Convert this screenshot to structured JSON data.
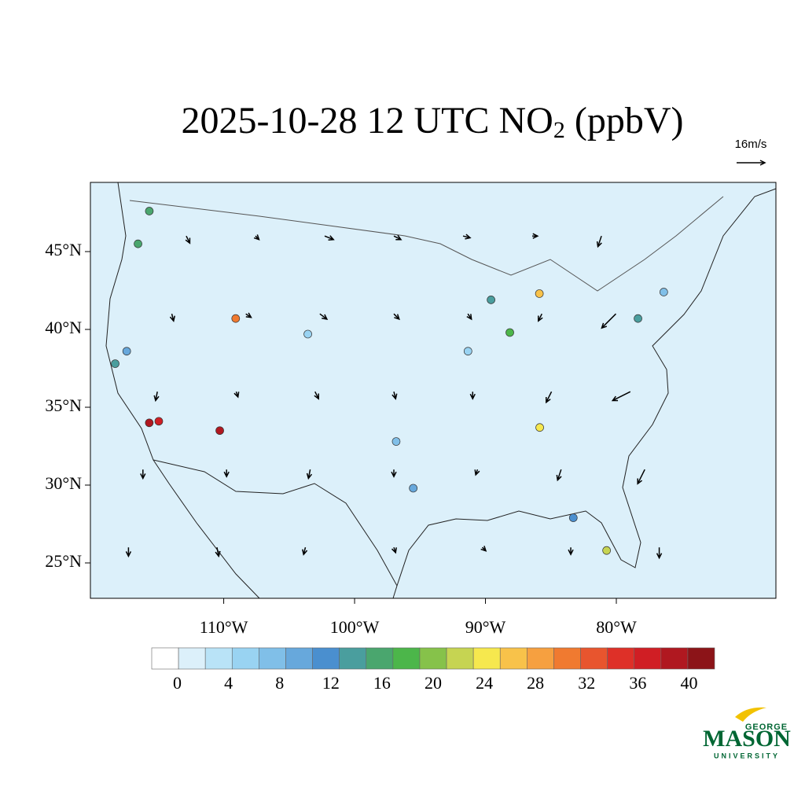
{
  "title": {
    "prefix": "2025-10-28 12 UTC NO",
    "subscript": "2",
    "suffix": " (ppbV)"
  },
  "wind_reference": {
    "label": "16m/s",
    "speed": 16
  },
  "lat_ticks": [
    {
      "value": 25,
      "label": "25°N"
    },
    {
      "value": 30,
      "label": "30°N"
    },
    {
      "value": 35,
      "label": "35°N"
    },
    {
      "value": 40,
      "label": "40°N"
    },
    {
      "value": 45,
      "label": "45°N"
    }
  ],
  "lon_ticks": [
    {
      "value": -110,
      "label": "110°W"
    },
    {
      "value": -100,
      "label": "100°W"
    },
    {
      "value": -90,
      "label": "90°W"
    },
    {
      "value": -80,
      "label": "80°W"
    }
  ],
  "colorbar": {
    "lim": [
      -2,
      42
    ],
    "ticks": [
      0,
      4,
      8,
      12,
      16,
      20,
      24,
      28,
      32,
      36,
      40
    ],
    "colors": [
      "#ffffff",
      "#dcf0fa",
      "#b9e3f7",
      "#99d3f2",
      "#80bfe8",
      "#67a8dc",
      "#4a8fcf",
      "#4a9e9e",
      "#4aa66e",
      "#4cb64a",
      "#86c24a",
      "#c6d452",
      "#f6e84e",
      "#f8c24a",
      "#f6a040",
      "#f07a30",
      "#e8552e",
      "#de3028",
      "#d01e24",
      "#b01820",
      "#8c1418"
    ]
  },
  "stations": [
    {
      "lon": -118.2,
      "lat": 34.0,
      "value": 38
    },
    {
      "lon": -117.4,
      "lat": 34.1,
      "value": 36
    },
    {
      "lon": -122.3,
      "lat": 37.8,
      "value": 14
    },
    {
      "lon": -121.5,
      "lat": 38.6,
      "value": 10
    },
    {
      "lon": -122.3,
      "lat": 47.6,
      "value": 16
    },
    {
      "lon": -122.7,
      "lat": 45.5,
      "value": 16
    },
    {
      "lon": -111.9,
      "lat": 40.7,
      "value": 30
    },
    {
      "lon": -105.0,
      "lat": 39.7,
      "value": 6
    },
    {
      "lon": -112.0,
      "lat": 33.5,
      "value": 38
    },
    {
      "lon": -87.7,
      "lat": 41.9,
      "value": 14
    },
    {
      "lon": -83.0,
      "lat": 42.3,
      "value": 26
    },
    {
      "lon": -74.0,
      "lat": 40.7,
      "value": 14
    },
    {
      "lon": -71.0,
      "lat": 42.4,
      "value": 8
    },
    {
      "lon": -84.4,
      "lat": 33.7,
      "value": 24
    },
    {
      "lon": -95.4,
      "lat": 29.8,
      "value": 10
    },
    {
      "lon": -96.8,
      "lat": 32.8,
      "value": 8
    },
    {
      "lon": -80.2,
      "lat": 25.8,
      "value": 22
    },
    {
      "lon": -82.5,
      "lat": 27.9,
      "value": 12
    },
    {
      "lon": -90.2,
      "lat": 38.6,
      "value": 6
    },
    {
      "lon": -86.2,
      "lat": 39.8,
      "value": 18
    }
  ],
  "wind": {
    "lons": [
      -118,
      -111,
      -104,
      -97,
      -90,
      -83,
      -76
    ],
    "lats": [
      46,
      41,
      36,
      31,
      26
    ],
    "u": [
      [
        2,
        2,
        5,
        4,
        4,
        3,
        -2
      ],
      [
        1,
        3,
        4,
        3,
        2,
        -2,
        -8
      ],
      [
        -1,
        1,
        2,
        1,
        0,
        -3,
        -10
      ],
      [
        0,
        0,
        -1,
        0,
        -1,
        -2,
        -4
      ],
      [
        0,
        1,
        -1,
        1,
        2,
        0,
        0
      ]
    ],
    "v": [
      [
        -4,
        -2,
        -2,
        -2,
        -1,
        0,
        -6
      ],
      [
        -4,
        -2,
        -3,
        -3,
        -3,
        -4,
        -8
      ],
      [
        -5,
        -3,
        -4,
        -4,
        -4,
        -6,
        -5
      ],
      [
        -5,
        -4,
        -5,
        -4,
        -3,
        -6,
        -8
      ],
      [
        -5,
        -5,
        -4,
        -3,
        -2,
        -4,
        -6
      ]
    ]
  },
  "logo": {
    "top": "GEORGE",
    "main": "MASON",
    "bottom": "UNIVERSITY"
  }
}
